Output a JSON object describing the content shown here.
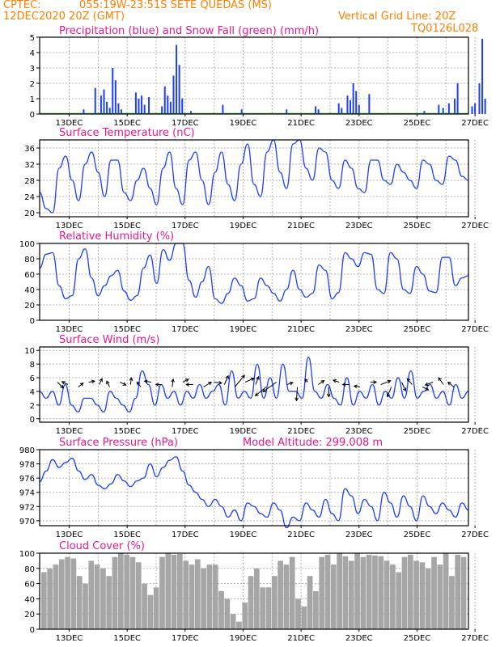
{
  "header": {
    "source": "CPTEC:",
    "location": "055:19W-23:51S  SETE QUEDAS (MS)",
    "date": "12DEC2020 20Z (GMT)",
    "grid_note": "Vertical Grid Line: 20Z",
    "code": "TQ0126L028"
  },
  "colors": {
    "title": "#e6198c",
    "header": "#ff7f00",
    "precip": "#1f3fff",
    "snow": "#20a020",
    "line": "#1f3fff",
    "cloud": "#a6a6a6",
    "arrow": "#000000"
  },
  "chart_data": [
    {
      "type": "bar",
      "title": "Precipitation (blue) and Snow Fall (green) (mm/h)",
      "x_labels": [
        "13DEC",
        "15DEC",
        "17DEC",
        "19DEC",
        "21DEC",
        "23DEC",
        "25DEC",
        "27DEC"
      ],
      "ylim": [
        0,
        5
      ],
      "yticks": [
        0,
        1,
        2,
        3,
        4,
        5
      ],
      "grid": true,
      "series": [
        {
          "name": "Precipitation",
          "color": "#1f3fff",
          "points": [
            [
              0.5,
              0.3
            ],
            [
              0.9,
              1.7
            ],
            [
              1.1,
              1.2
            ],
            [
              1.2,
              1.6
            ],
            [
              1.3,
              0.8
            ],
            [
              1.4,
              0.4
            ],
            [
              1.5,
              3.0
            ],
            [
              1.6,
              2.2
            ],
            [
              1.7,
              0.7
            ],
            [
              1.8,
              0.3
            ],
            [
              2.3,
              1.4
            ],
            [
              2.4,
              1.0
            ],
            [
              2.5,
              1.2
            ],
            [
              2.6,
              0.6
            ],
            [
              2.75,
              1.1
            ],
            [
              3.2,
              0.5
            ],
            [
              3.3,
              1.8
            ],
            [
              3.4,
              1.2
            ],
            [
              3.5,
              0.8
            ],
            [
              3.6,
              2.5
            ],
            [
              3.7,
              4.5
            ],
            [
              3.8,
              3.2
            ],
            [
              3.9,
              1.0
            ],
            [
              4.2,
              0.2
            ],
            [
              5.3,
              0.6
            ],
            [
              5.95,
              0.3
            ],
            [
              7.5,
              0.3
            ],
            [
              8.5,
              0.5
            ],
            [
              8.6,
              0.3
            ],
            [
              9.3,
              0.7
            ],
            [
              9.4,
              0.4
            ],
            [
              9.6,
              1.2
            ],
            [
              9.7,
              0.9
            ],
            [
              9.8,
              2.0
            ],
            [
              9.9,
              1.5
            ],
            [
              10.0,
              0.6
            ],
            [
              10.35,
              1.3
            ],
            [
              12.25,
              0.2
            ],
            [
              12.75,
              0.6
            ],
            [
              12.9,
              0.4
            ],
            [
              13.1,
              0.7
            ],
            [
              13.3,
              1.0
            ],
            [
              13.4,
              2.0
            ],
            [
              13.9,
              0.5
            ],
            [
              14.0,
              0.7
            ],
            [
              14.15,
              2.0
            ],
            [
              14.25,
              4.9
            ],
            [
              14.35,
              1.0
            ]
          ]
        },
        {
          "name": "Snow Fall",
          "color": "#20a020",
          "points": []
        }
      ]
    },
    {
      "type": "line",
      "title": "Surface Temperature (nC)",
      "x_labels": [
        "13DEC",
        "15DEC",
        "17DEC",
        "19DEC",
        "21DEC",
        "23DEC",
        "25DEC",
        "27DEC"
      ],
      "ylim": [
        19,
        38
      ],
      "yticks": [
        20,
        24,
        28,
        32,
        36
      ],
      "grid": true,
      "series": [
        {
          "color": "#1f3fff",
          "values": [
            25,
            21,
            20,
            31,
            34,
            28,
            23,
            32,
            35,
            30,
            24,
            33,
            33,
            25,
            23,
            28,
            31,
            26,
            22,
            31,
            35,
            26,
            22,
            33,
            35,
            28,
            22,
            30,
            35,
            27,
            23,
            32,
            37,
            27,
            24,
            35,
            38,
            30,
            26,
            37,
            38,
            31,
            28,
            36,
            35,
            28,
            26,
            33,
            31,
            26,
            25,
            33,
            33,
            28,
            27,
            32,
            30,
            28,
            26,
            33,
            32,
            28,
            27,
            34,
            33,
            29,
            28
          ]
        }
      ]
    },
    {
      "type": "line",
      "title": "Relative Humidity (%)",
      "x_labels": [
        "13DEC",
        "15DEC",
        "17DEC",
        "19DEC",
        "21DEC",
        "23DEC",
        "25DEC",
        "27DEC"
      ],
      "ylim": [
        0,
        100
      ],
      "yticks": [
        0,
        20,
        40,
        60,
        80,
        100
      ],
      "grid": true,
      "series": [
        {
          "color": "#1f3fff",
          "values": [
            68,
            86,
            88,
            45,
            28,
            32,
            80,
            93,
            55,
            32,
            45,
            58,
            65,
            38,
            26,
            32,
            68,
            85,
            48,
            92,
            78,
            100,
            100,
            52,
            30,
            50,
            70,
            28,
            22,
            35,
            55,
            45,
            25,
            28,
            55,
            45,
            35,
            25,
            40,
            65,
            40,
            30,
            35,
            72,
            65,
            28,
            36,
            88,
            80,
            70,
            88,
            86,
            40,
            35,
            88,
            80,
            40,
            35,
            70,
            60,
            38,
            36,
            82,
            82,
            45,
            55,
            58
          ]
        }
      ]
    },
    {
      "type": "line",
      "title": "Surface Wind (m/s)",
      "x_labels": [
        "13DEC",
        "15DEC",
        "17DEC",
        "19DEC",
        "21DEC",
        "23DEC",
        "25DEC",
        "27DEC"
      ],
      "ylim": [
        -0.5,
        10.5
      ],
      "yticks": [
        0,
        2,
        4,
        6,
        8,
        10
      ],
      "grid": true,
      "series": [
        {
          "color": "#1f3fff",
          "values": [
            4,
            3,
            4,
            2,
            5,
            2,
            1,
            3,
            3,
            2,
            1,
            4,
            3,
            2,
            1,
            3,
            7,
            5,
            2,
            5,
            3,
            4,
            2,
            4,
            3,
            5,
            3,
            4,
            5,
            2,
            7,
            3,
            4,
            3,
            8,
            3,
            6,
            3,
            8,
            4,
            4,
            3,
            9,
            4,
            3,
            5,
            3,
            2,
            6,
            2,
            4,
            3,
            5,
            2,
            4,
            3,
            6,
            3,
            7,
            3,
            4,
            5,
            3,
            4,
            2,
            5,
            3,
            4
          ]
        }
      ],
      "arrows": [
        [
          0.6,
          -0.6
        ],
        [
          -0.6,
          0.3
        ],
        [
          0.5,
          0.4
        ],
        [
          0.6,
          0.1
        ],
        [
          0.3,
          0.6
        ],
        [
          -0.3,
          0.6
        ],
        [
          0.6,
          -0.3
        ],
        [
          0.1,
          0.7
        ],
        [
          -0.4,
          0.5
        ],
        [
          -0.7,
          0.1
        ],
        [
          -0.6,
          0
        ],
        [
          0.1,
          0.8
        ],
        [
          0.6,
          0.3
        ],
        [
          -0.7,
          0
        ],
        [
          0.8,
          0.5
        ],
        [
          0.8,
          -0.1
        ],
        [
          0.4,
          0.9
        ],
        [
          1.0,
          1.2
        ],
        [
          0.9,
          0.4
        ],
        [
          0.3,
          0.8
        ],
        [
          -1.1,
          -0.9
        ],
        [
          -1.4,
          -1.0
        ],
        [
          0.6,
          0.2
        ],
        [
          -0.1,
          -1.4
        ],
        [
          -0.3,
          0.3
        ],
        [
          0.6,
          0.4
        ],
        [
          0,
          -1.0
        ],
        [
          -0.6,
          0.2
        ],
        [
          -0.7,
          0
        ],
        [
          -0.6,
          0.1
        ],
        [
          0.6,
          0
        ],
        [
          1.0,
          0.4
        ],
        [
          -0.4,
          -1.0
        ],
        [
          0.4,
          -0.9
        ],
        [
          -0.5,
          0.6
        ],
        [
          0.6,
          -0.3
        ],
        [
          -0.8,
          -0.3
        ],
        [
          -0.5,
          0.7
        ],
        [
          -0.6,
          0.5
        ]
      ]
    },
    {
      "type": "line",
      "title": "Surface Pressure (hPa)",
      "subtitle": "Model Altitude: 299.008 m",
      "x_labels": [
        "13DEC",
        "15DEC",
        "17DEC",
        "19DEC",
        "21DEC",
        "23DEC",
        "25DEC",
        "27DEC"
      ],
      "ylim": [
        969.3,
        980
      ],
      "yticks": [
        970,
        972,
        974,
        976,
        978,
        980
      ],
      "grid": true,
      "series": [
        {
          "color": "#1f3fff",
          "values": [
            975.5,
            977,
            978.6,
            977.5,
            978.2,
            978.8,
            977,
            975.8,
            976.5,
            975,
            974.5,
            975.2,
            976.5,
            975.6,
            974.8,
            975.6,
            976,
            978,
            976.2,
            977.5,
            978.5,
            979,
            977,
            975,
            974,
            973,
            972,
            973,
            972,
            970.5,
            971.5,
            970,
            972.5,
            972,
            971,
            970.5,
            972.5,
            971.5,
            969,
            970.5,
            970,
            972.5,
            971.5,
            970.5,
            973,
            971,
            970,
            974.5,
            973.5,
            971,
            973,
            972,
            970,
            974,
            972.5,
            970.5,
            973.5,
            972,
            970,
            973.5,
            972,
            971,
            972.5,
            971.5,
            970.5,
            972.5,
            971.5
          ]
        }
      ]
    },
    {
      "type": "area",
      "title": "Cloud Cover (%)",
      "x_labels": [
        "13DEC",
        "15DEC",
        "17DEC",
        "19DEC",
        "21DEC",
        "23DEC",
        "25DEC",
        "27DEC"
      ],
      "ylim": [
        0,
        100
      ],
      "yticks": [
        0,
        20,
        40,
        60,
        80,
        100
      ],
      "grid": true,
      "series": [
        {
          "color": "#a6a6a6",
          "values": [
            75,
            80,
            85,
            92,
            95,
            93,
            70,
            60,
            90,
            85,
            80,
            70,
            95,
            100,
            98,
            95,
            88,
            60,
            45,
            55,
            95,
            100,
            98,
            99,
            90,
            85,
            92,
            80,
            85,
            85,
            50,
            40,
            20,
            10,
            35,
            70,
            80,
            55,
            55,
            70,
            90,
            85,
            95,
            40,
            30,
            70,
            50,
            95,
            98,
            85,
            100,
            96,
            90,
            100,
            95,
            98,
            97,
            96,
            90,
            85,
            75,
            95,
            98,
            90,
            88,
            80,
            95,
            85,
            100,
            70,
            98,
            95
          ]
        }
      ]
    }
  ]
}
